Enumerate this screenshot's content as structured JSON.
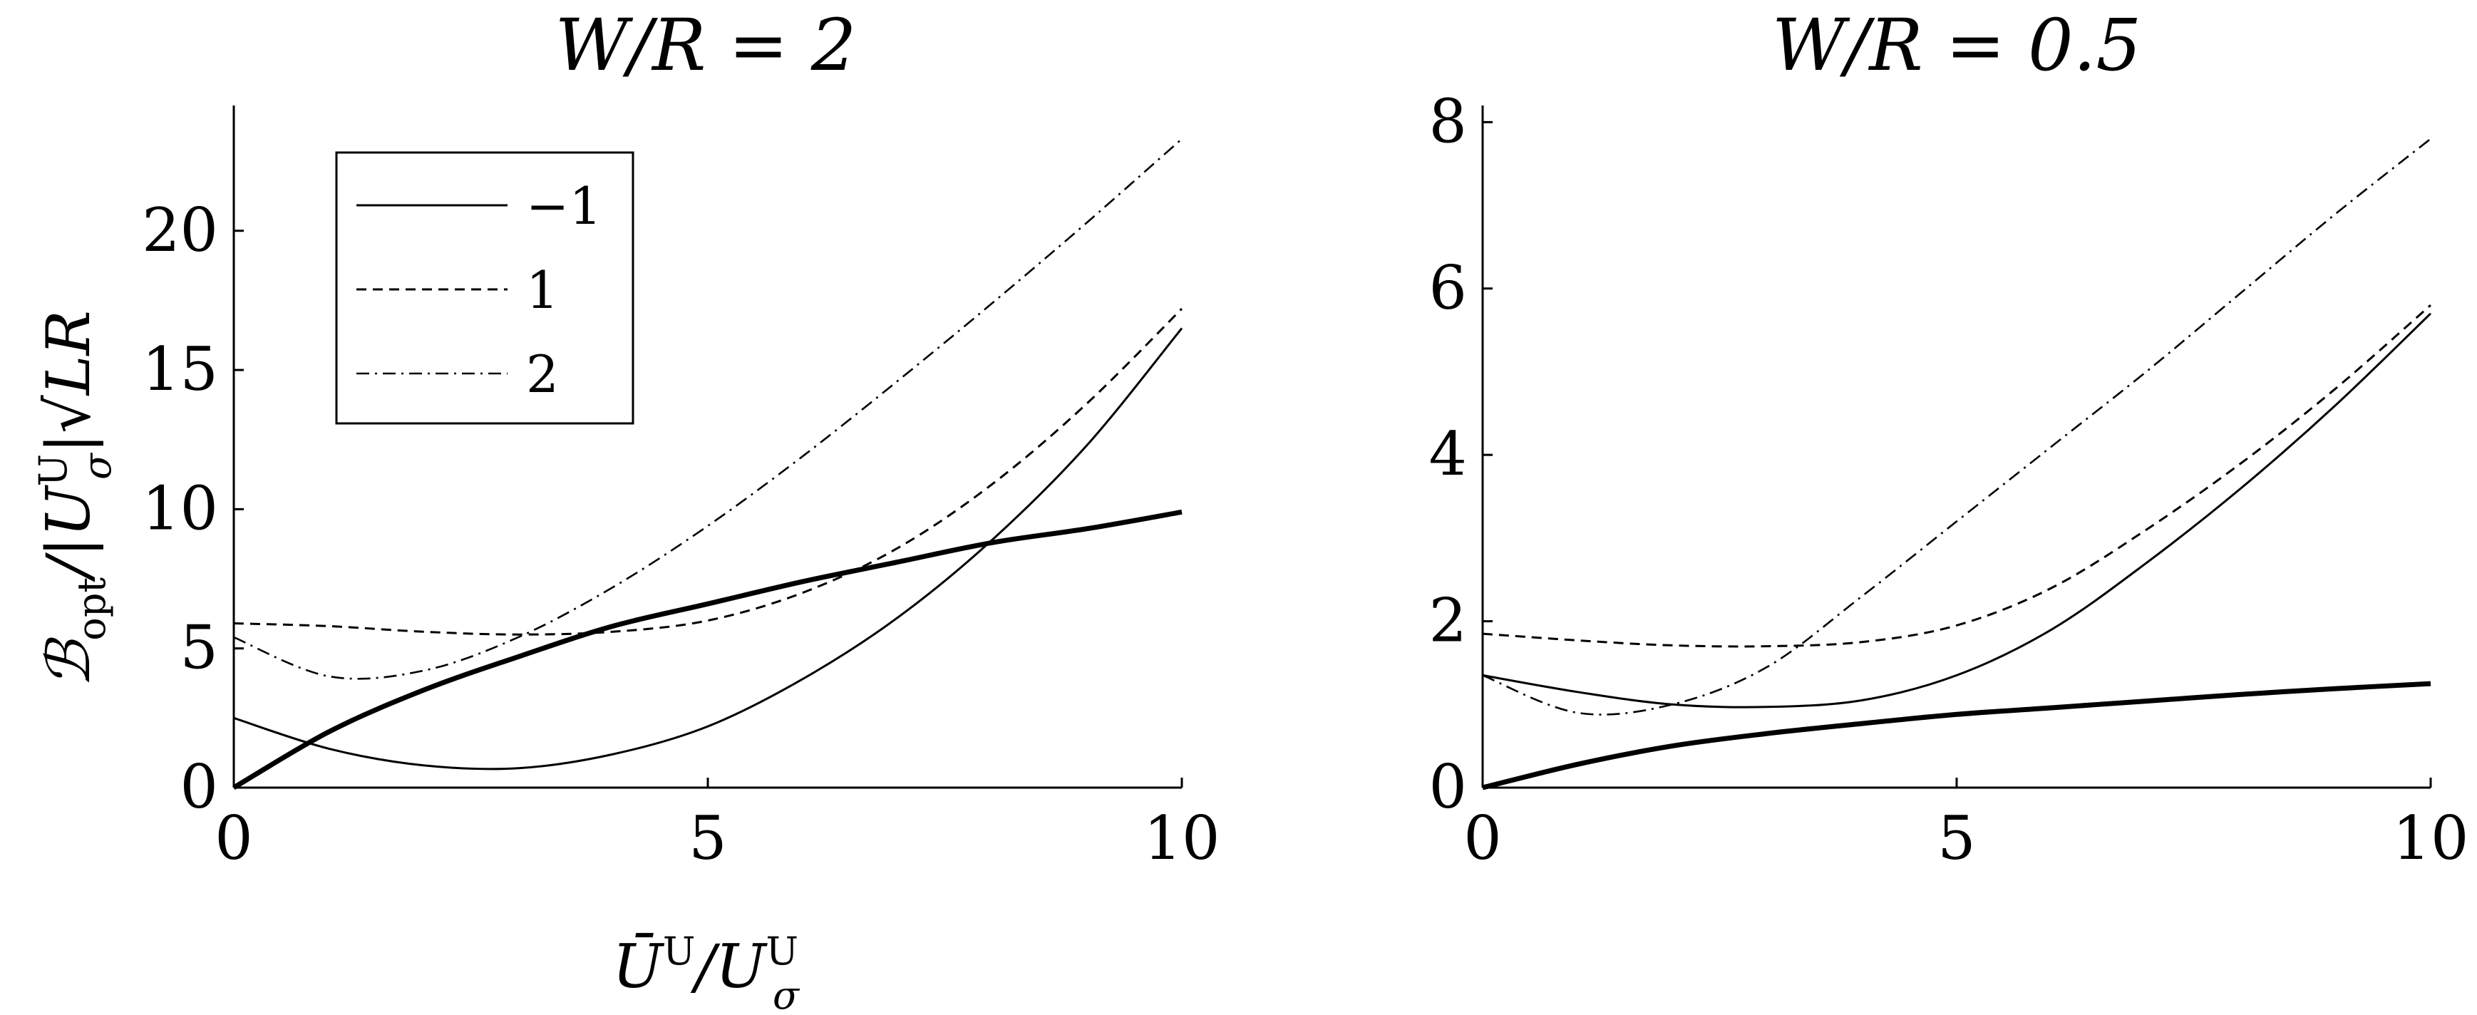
{
  "chart_data": [
    {
      "type": "line",
      "title": "W/R = 2",
      "xlabel": "Ū^U/U_σ^U",
      "ylabel": "B_opt/|U_σ^U|√(LR)",
      "xlim": [
        0,
        10
      ],
      "ylim": [
        0,
        24.5
      ],
      "xticks": [
        "0",
        "5",
        "10"
      ],
      "yticks": [
        "0",
        "5",
        "10",
        "15",
        "20"
      ],
      "grid": false,
      "legend": {
        "placement": "top-left",
        "entries": [
          "−1",
          "1",
          "2"
        ]
      },
      "x": [
        0,
        1,
        2,
        3,
        4,
        5,
        6,
        7,
        8,
        9,
        10
      ],
      "series": [
        {
          "name": "−1",
          "style": "solid-thin",
          "values": [
            2.5,
            1.4,
            0.8,
            0.7,
            1.2,
            2.2,
            3.9,
            6.1,
            8.9,
            12.3,
            16.5
          ]
        },
        {
          "name": "1",
          "style": "dashed",
          "values": [
            5.9,
            5.8,
            5.6,
            5.5,
            5.6,
            6.0,
            7.0,
            8.6,
            10.9,
            13.8,
            17.2
          ]
        },
        {
          "name": "2",
          "style": "dash-dot",
          "values": [
            5.4,
            4.0,
            4.2,
            5.4,
            7.2,
            9.4,
            11.9,
            14.6,
            17.4,
            20.3,
            23.3
          ]
        },
        {
          "style": "solid-thick",
          "values": [
            0,
            2.0,
            3.5,
            4.7,
            5.8,
            6.6,
            7.4,
            8.1,
            8.8,
            9.3,
            9.9
          ]
        }
      ]
    },
    {
      "type": "line",
      "title": "W/R = 0.5",
      "xlim": [
        0,
        10
      ],
      "ylim": [
        0,
        8.2
      ],
      "xticks": [
        "0",
        "5",
        "10"
      ],
      "yticks": [
        "0",
        "2",
        "4",
        "6",
        "8"
      ],
      "grid": false,
      "x": [
        0,
        1,
        2,
        3,
        4,
        5,
        6,
        7,
        8,
        9,
        10
      ],
      "series": [
        {
          "style": "solid-thin",
          "values": [
            1.35,
            1.15,
            1.0,
            0.97,
            1.05,
            1.35,
            1.9,
            2.7,
            3.6,
            4.6,
            5.7
          ]
        },
        {
          "style": "dashed",
          "values": [
            1.85,
            1.77,
            1.71,
            1.7,
            1.75,
            1.95,
            2.4,
            3.1,
            3.9,
            4.8,
            5.8
          ]
        },
        {
          "style": "dash-dot",
          "values": [
            1.35,
            0.9,
            1.0,
            1.45,
            2.3,
            3.2,
            4.1,
            5.0,
            5.95,
            6.9,
            7.8
          ]
        },
        {
          "style": "solid-thick",
          "values": [
            0,
            0.28,
            0.5,
            0.65,
            0.77,
            0.88,
            0.96,
            1.04,
            1.12,
            1.19,
            1.25
          ]
        }
      ]
    }
  ]
}
